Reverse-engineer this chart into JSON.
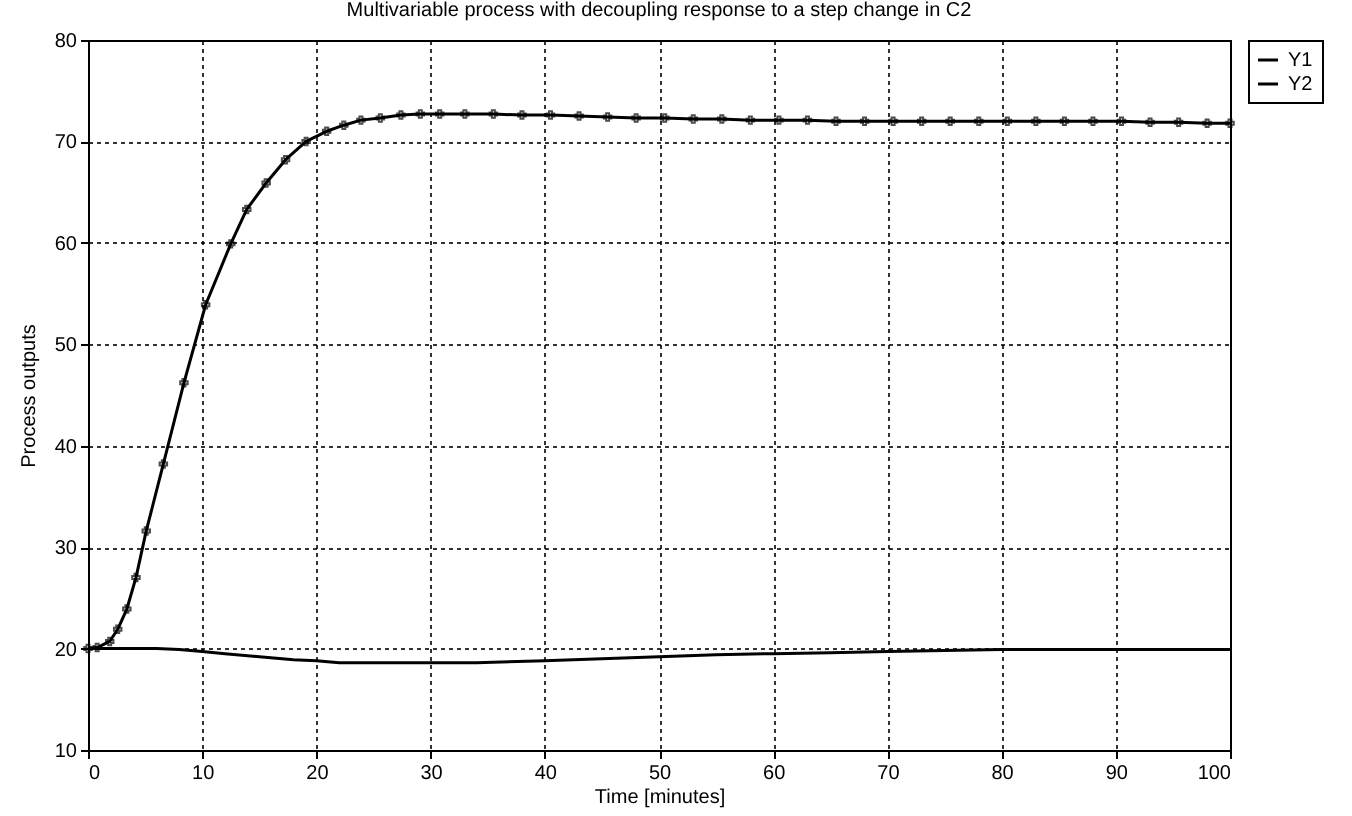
{
  "chart_data": {
    "type": "line",
    "title": "Multivariable process with decoupling response to a step change in C2",
    "xlabel": "Time [minutes]",
    "ylabel": "Process outputs",
    "xlim": [
      0,
      100
    ],
    "xticks": [
      0,
      10,
      20,
      30,
      40,
      50,
      60,
      70,
      80,
      90,
      100
    ],
    "ylim": [
      10,
      80
    ],
    "yticks": [
      10,
      20,
      30,
      40,
      50,
      60,
      70,
      80
    ],
    "grid": true,
    "legend": "top right",
    "line_style": "solid",
    "series": [
      {
        "name": "Y1",
        "color": "#000000",
        "marker": "none",
        "x": [
          0,
          3,
          6,
          8,
          10,
          12,
          15,
          18,
          20,
          22,
          26,
          30,
          34,
          40,
          45,
          50,
          55,
          60,
          65,
          70,
          75,
          80,
          90,
          100
        ],
        "values": [
          20,
          20,
          20,
          19.9,
          19.7,
          19.5,
          19.2,
          18.9,
          18.8,
          18.6,
          18.6,
          18.6,
          18.6,
          18.8,
          19,
          19.2,
          19.4,
          19.5,
          19.6,
          19.7,
          19.8,
          19.9,
          19.9,
          19.9
        ]
      },
      {
        "name": "Y2",
        "color": "#000000",
        "marker": "cross",
        "x": [
          0,
          0.8,
          1.9,
          2.6,
          3.4,
          4.2,
          5.1,
          6.6,
          8.4,
          10.3,
          12.5,
          13.9,
          15.6,
          17.3,
          19.1,
          20.9,
          22.4,
          23.9,
          25.6,
          27.4,
          29.1,
          30.8,
          33,
          35.5,
          38,
          40.5,
          43,
          45.5,
          48,
          50.5,
          53,
          55.5,
          58,
          60.5,
          63,
          65.5,
          68,
          70.5,
          73,
          75.5,
          78,
          80.5,
          83,
          85.5,
          88,
          90.5,
          93,
          95.5,
          98,
          100
        ],
        "values": [
          20,
          20.1,
          20.7,
          21.9,
          23.9,
          27,
          31.6,
          38.2,
          46.2,
          53.9,
          59.9,
          63.3,
          65.9,
          68.2,
          70,
          71,
          71.6,
          72.1,
          72.3,
          72.6,
          72.7,
          72.7,
          72.7,
          72.7,
          72.6,
          72.6,
          72.5,
          72.4,
          72.3,
          72.3,
          72.2,
          72.2,
          72.1,
          72.1,
          72.1,
          72,
          72,
          72,
          72,
          72,
          72,
          72,
          72,
          72,
          72,
          72,
          71.9,
          71.9,
          71.8,
          71.8
        ]
      }
    ]
  }
}
